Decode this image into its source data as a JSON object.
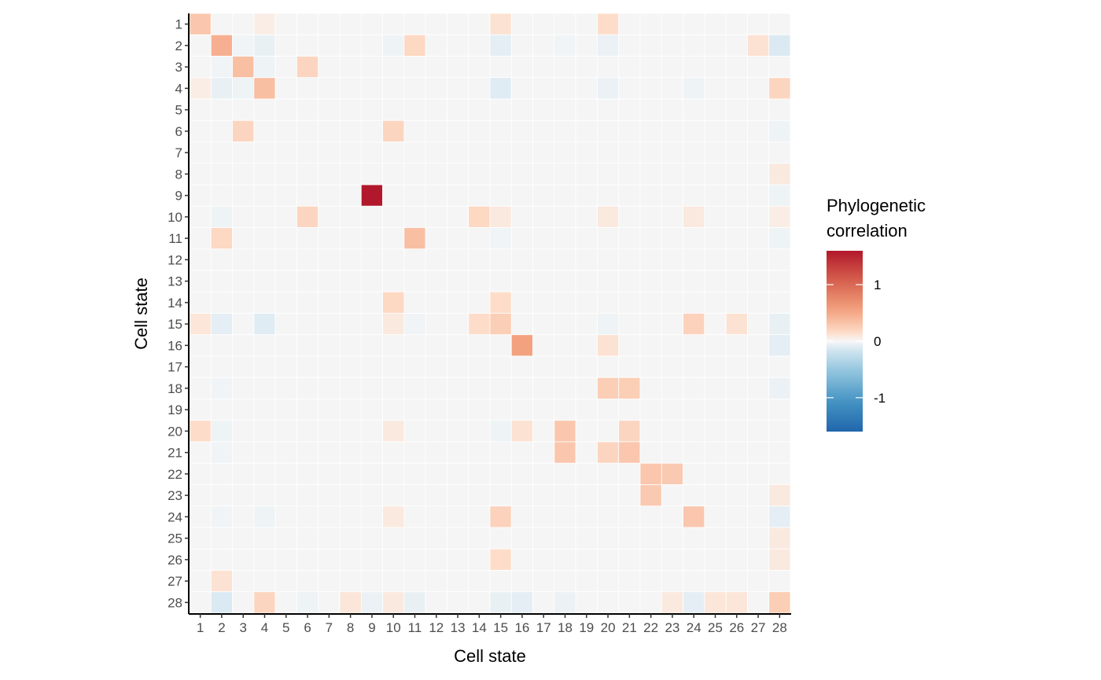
{
  "chart_data": {
    "type": "heatmap",
    "xlabel": "Cell state",
    "ylabel": "Cell state",
    "x_categories": [
      "1",
      "2",
      "3",
      "4",
      "5",
      "6",
      "7",
      "8",
      "9",
      "10",
      "11",
      "12",
      "13",
      "14",
      "15",
      "16",
      "17",
      "18",
      "19",
      "20",
      "21",
      "22",
      "23",
      "24",
      "25",
      "26",
      "27",
      "28"
    ],
    "y_categories": [
      "1",
      "2",
      "3",
      "4",
      "5",
      "6",
      "7",
      "8",
      "9",
      "10",
      "11",
      "12",
      "13",
      "14",
      "15",
      "16",
      "17",
      "18",
      "19",
      "20",
      "21",
      "22",
      "23",
      "24",
      "25",
      "26",
      "27",
      "28"
    ],
    "legend": {
      "title_line1": "Phylogenetic",
      "title_line2": "correlation",
      "limits": [
        -1.6,
        1.6
      ],
      "ticks": [
        {
          "value": 1,
          "label": "1"
        },
        {
          "value": 0,
          "label": "0"
        },
        {
          "value": -1,
          "label": "-1"
        }
      ],
      "placement": "right"
    },
    "colors": {
      "low": "#2166ac",
      "mid": "#f7f7f7",
      "high": "#b2182b",
      "na": "#f5f5f5"
    },
    "default_value": 0.0,
    "cells": [
      {
        "x": "1",
        "y": "1",
        "value": 0.3
      },
      {
        "x": "2",
        "y": "2",
        "value": 0.45
      },
      {
        "x": "3",
        "y": "3",
        "value": 0.35
      },
      {
        "x": "4",
        "y": "4",
        "value": 0.35
      },
      {
        "x": "9",
        "y": "9",
        "value": 1.6
      },
      {
        "x": "11",
        "y": "11",
        "value": 0.35
      },
      {
        "x": "16",
        "y": "16",
        "value": 0.55
      },
      {
        "x": "21",
        "y": "21",
        "value": 0.3
      },
      {
        "x": "22",
        "y": "22",
        "value": 0.3
      },
      {
        "x": "24",
        "y": "24",
        "value": 0.3
      },
      {
        "x": "28",
        "y": "28",
        "value": 0.25
      },
      {
        "x": "15",
        "y": "15",
        "value": 0.25
      },
      {
        "x": "3",
        "y": "6",
        "value": 0.2
      },
      {
        "x": "6",
        "y": "3",
        "value": 0.2
      },
      {
        "x": "6",
        "y": "10",
        "value": 0.2
      },
      {
        "x": "10",
        "y": "6",
        "value": 0.2
      },
      {
        "x": "2",
        "y": "11",
        "value": 0.18
      },
      {
        "x": "11",
        "y": "2",
        "value": 0.18
      },
      {
        "x": "10",
        "y": "14",
        "value": 0.18
      },
      {
        "x": "14",
        "y": "10",
        "value": 0.18
      },
      {
        "x": "15",
        "y": "14",
        "value": 0.15
      },
      {
        "x": "14",
        "y": "15",
        "value": 0.15
      },
      {
        "x": "15",
        "y": "24",
        "value": 0.22
      },
      {
        "x": "24",
        "y": "15",
        "value": 0.22
      },
      {
        "x": "15",
        "y": "26",
        "value": 0.15
      },
      {
        "x": "26",
        "y": "15",
        "value": 0.12
      },
      {
        "x": "18",
        "y": "20",
        "value": 0.3
      },
      {
        "x": "20",
        "y": "18",
        "value": 0.25
      },
      {
        "x": "18",
        "y": "21",
        "value": 0.3
      },
      {
        "x": "21",
        "y": "18",
        "value": 0.25
      },
      {
        "x": "20",
        "y": "21",
        "value": 0.2
      },
      {
        "x": "21",
        "y": "20",
        "value": 0.2
      },
      {
        "x": "22",
        "y": "23",
        "value": 0.28
      },
      {
        "x": "23",
        "y": "22",
        "value": 0.28
      },
      {
        "x": "4",
        "y": "28",
        "value": 0.2
      },
      {
        "x": "28",
        "y": "4",
        "value": 0.2
      },
      {
        "x": "20",
        "y": "1",
        "value": 0.15
      },
      {
        "x": "1",
        "y": "20",
        "value": 0.15
      },
      {
        "x": "15",
        "y": "1",
        "value": 0.12
      },
      {
        "x": "1",
        "y": "15",
        "value": 0.1
      },
      {
        "x": "20",
        "y": "16",
        "value": 0.12
      },
      {
        "x": "16",
        "y": "20",
        "value": 0.12
      },
      {
        "x": "2",
        "y": "27",
        "value": 0.12
      },
      {
        "x": "27",
        "y": "2",
        "value": 0.12
      },
      {
        "x": "10",
        "y": "15",
        "value": 0.08
      },
      {
        "x": "15",
        "y": "10",
        "value": 0.08
      },
      {
        "x": "10",
        "y": "20",
        "value": 0.08
      },
      {
        "x": "20",
        "y": "10",
        "value": 0.08
      },
      {
        "x": "24",
        "y": "10",
        "value": 0.08
      },
      {
        "x": "10",
        "y": "24",
        "value": 0.08
      },
      {
        "x": "8",
        "y": "28",
        "value": 0.1
      },
      {
        "x": "10",
        "y": "28",
        "value": 0.08
      },
      {
        "x": "25",
        "y": "28",
        "value": 0.1
      },
      {
        "x": "26",
        "y": "28",
        "value": 0.1
      },
      {
        "x": "23",
        "y": "28",
        "value": 0.08
      },
      {
        "x": "28",
        "y": "23",
        "value": 0.08
      },
      {
        "x": "28",
        "y": "25",
        "value": 0.08
      },
      {
        "x": "28",
        "y": "26",
        "value": 0.08
      },
      {
        "x": "28",
        "y": "8",
        "value": 0.08
      },
      {
        "x": "28",
        "y": "10",
        "value": 0.06
      },
      {
        "x": "1",
        "y": "4",
        "value": 0.06
      },
      {
        "x": "4",
        "y": "1",
        "value": 0.06
      },
      {
        "x": "2",
        "y": "28",
        "value": -0.12
      },
      {
        "x": "28",
        "y": "2",
        "value": -0.12
      },
      {
        "x": "4",
        "y": "15",
        "value": -0.1
      },
      {
        "x": "15",
        "y": "4",
        "value": -0.1
      },
      {
        "x": "2",
        "y": "15",
        "value": -0.08
      },
      {
        "x": "15",
        "y": "2",
        "value": -0.08
      },
      {
        "x": "4",
        "y": "2",
        "value": -0.06
      },
      {
        "x": "2",
        "y": "4",
        "value": -0.06
      },
      {
        "x": "15",
        "y": "28",
        "value": -0.06
      },
      {
        "x": "28",
        "y": "15",
        "value": -0.06
      },
      {
        "x": "16",
        "y": "28",
        "value": -0.08
      },
      {
        "x": "28",
        "y": "16",
        "value": -0.08
      },
      {
        "x": "11",
        "y": "28",
        "value": -0.06
      },
      {
        "x": "18",
        "y": "28",
        "value": -0.05
      },
      {
        "x": "24",
        "y": "28",
        "value": -0.08
      },
      {
        "x": "28",
        "y": "24",
        "value": -0.08
      },
      {
        "x": "9",
        "y": "28",
        "value": -0.05
      },
      {
        "x": "6",
        "y": "28",
        "value": -0.04
      },
      {
        "x": "28",
        "y": "9",
        "value": -0.04
      },
      {
        "x": "28",
        "y": "18",
        "value": -0.05
      },
      {
        "x": "28",
        "y": "6",
        "value": -0.04
      },
      {
        "x": "28",
        "y": "11",
        "value": -0.04
      },
      {
        "x": "20",
        "y": "2",
        "value": -0.05
      },
      {
        "x": "20",
        "y": "4",
        "value": -0.05
      },
      {
        "x": "20",
        "y": "15",
        "value": -0.04
      },
      {
        "x": "2",
        "y": "20",
        "value": -0.04
      },
      {
        "x": "2",
        "y": "10",
        "value": -0.04
      },
      {
        "x": "3",
        "y": "4",
        "value": -0.04
      },
      {
        "x": "4",
        "y": "3",
        "value": -0.04
      },
      {
        "x": "2",
        "y": "3",
        "value": -0.03
      },
      {
        "x": "3",
        "y": "2",
        "value": -0.03
      },
      {
        "x": "2",
        "y": "18",
        "value": -0.03
      },
      {
        "x": "18",
        "y": "2",
        "value": -0.03
      },
      {
        "x": "2",
        "y": "24",
        "value": -0.03
      },
      {
        "x": "2",
        "y": "21",
        "value": -0.03
      },
      {
        "x": "10",
        "y": "2",
        "value": -0.04
      },
      {
        "x": "24",
        "y": "4",
        "value": -0.04
      },
      {
        "x": "4",
        "y": "24",
        "value": -0.04
      },
      {
        "x": "15",
        "y": "20",
        "value": -0.04
      },
      {
        "x": "11",
        "y": "15",
        "value": -0.03
      },
      {
        "x": "15",
        "y": "11",
        "value": -0.03
      }
    ]
  }
}
